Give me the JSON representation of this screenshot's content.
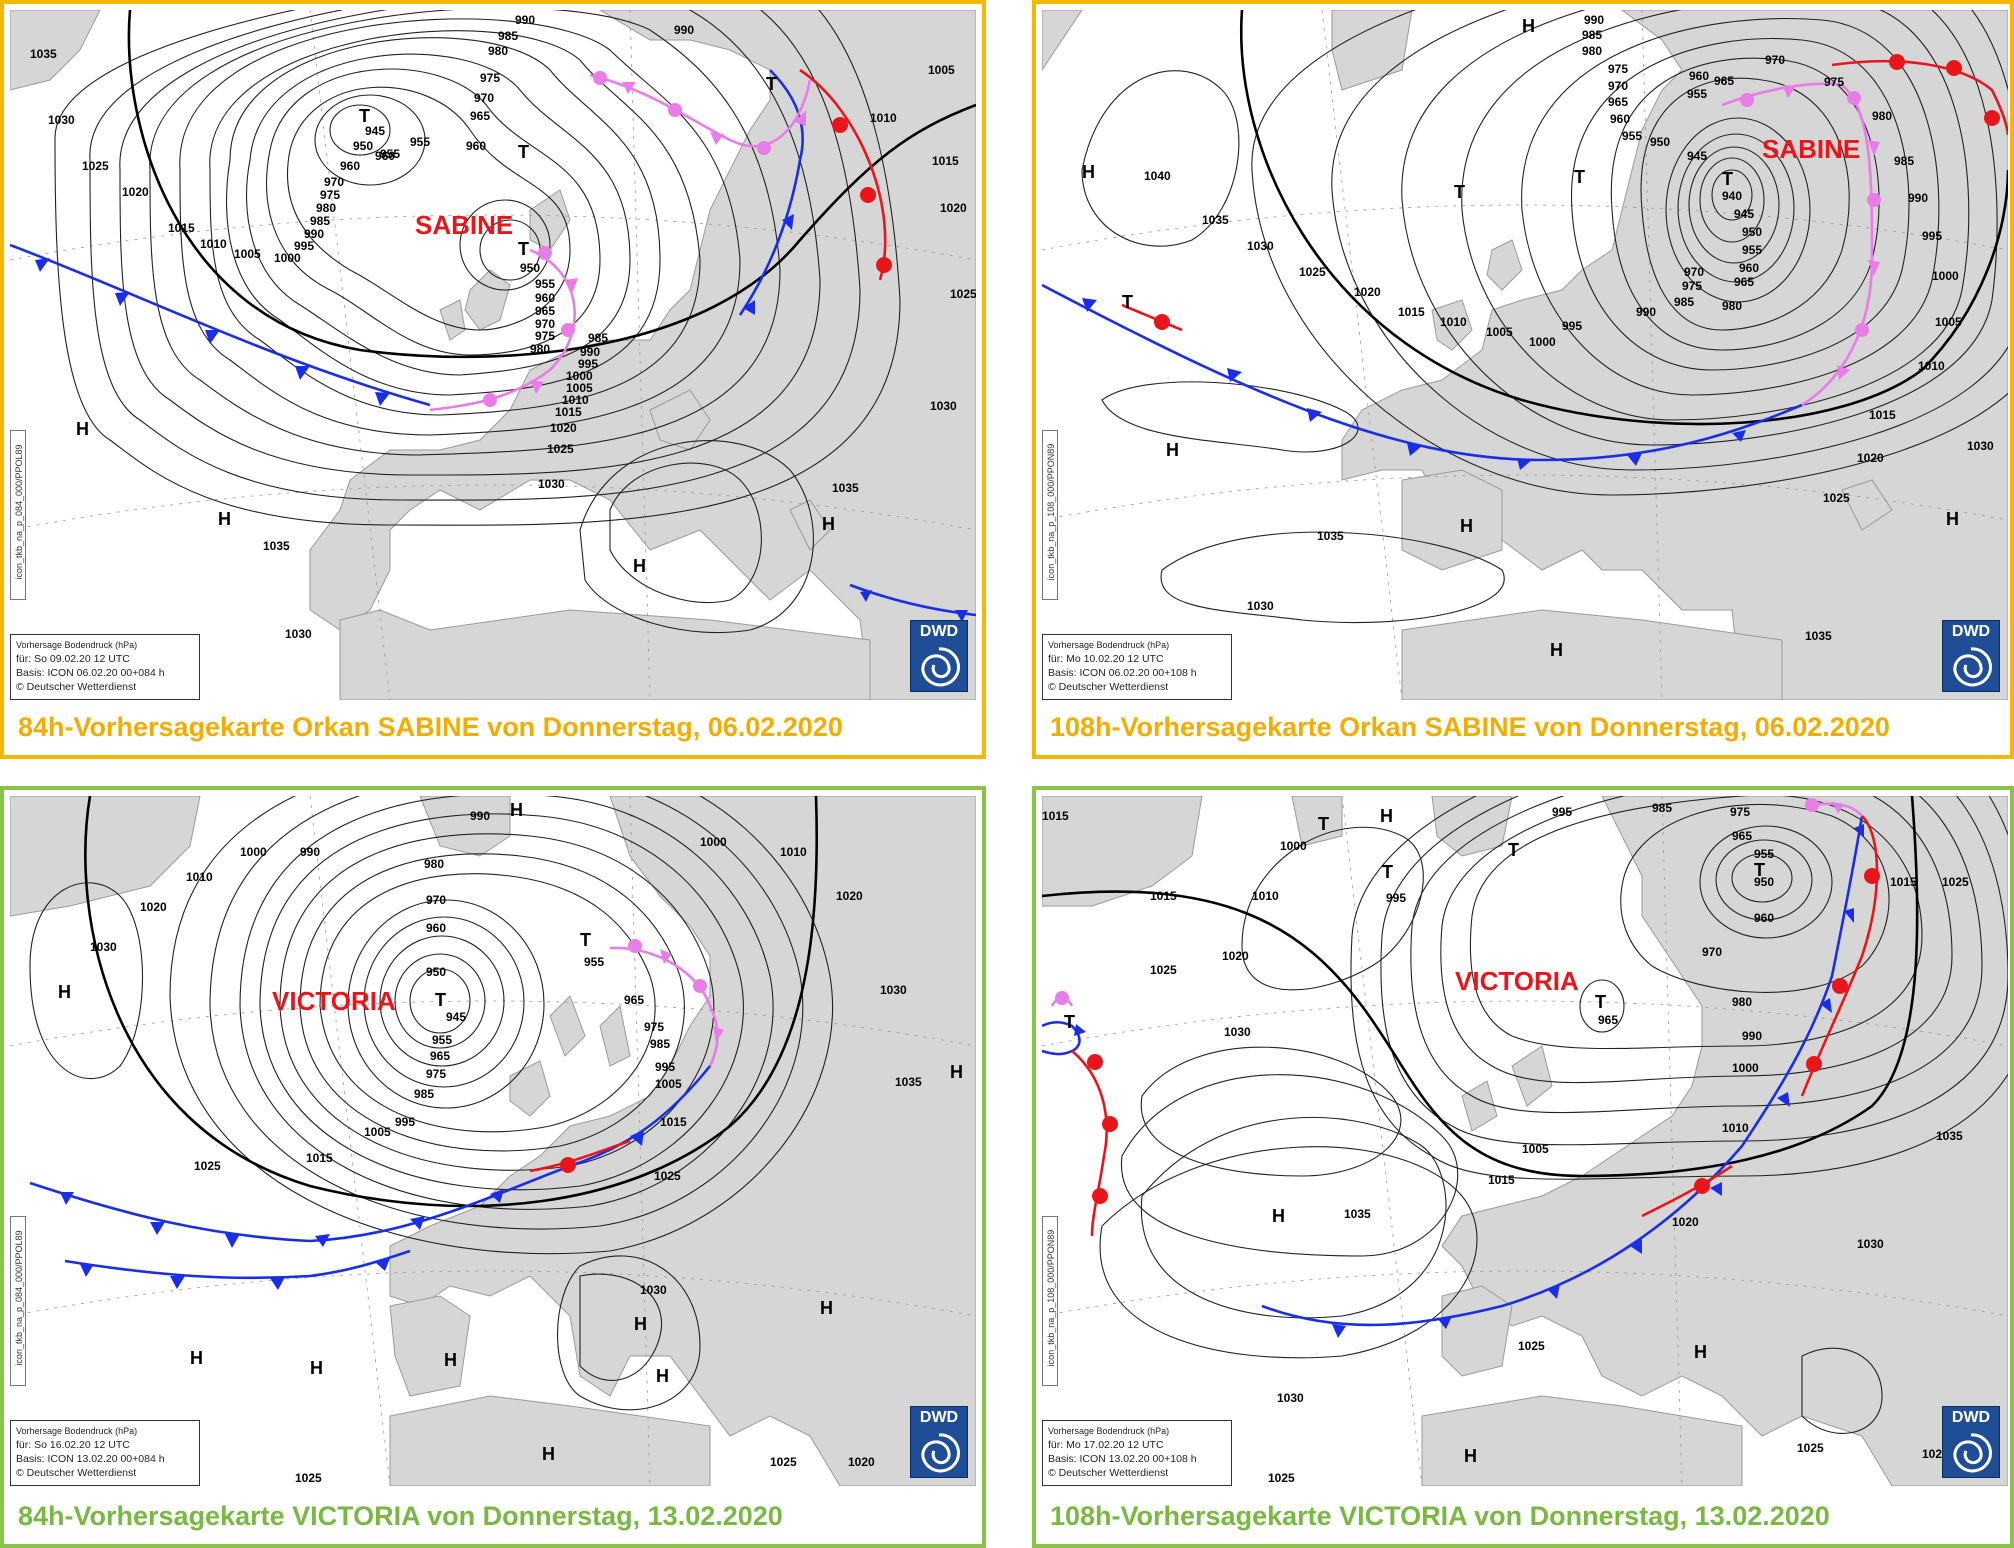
{
  "colors": {
    "top_border": "#f5b700",
    "top_caption": "#f2ad00",
    "bottom_border": "#8bc34a",
    "bottom_caption": "#79b843",
    "land": "#d6d6d6",
    "sea": "#ffffff",
    "cold_front": "#1a2ee6",
    "warm_front": "#e8161a",
    "occluded_front": "#e87de8",
    "storm_name": "#e8161a",
    "dwd_blue": "#1f4e96"
  },
  "panels": [
    {
      "caption": "84h-Vorhersagekarte Orkan SABINE von Donnerstag, 06.02.2020",
      "storm_name": "SABINE",
      "legend": {
        "title": "Vorhersage Bodendruck (hPa)",
        "valid": "für:  So 09.02.20  12 UTC",
        "basis": "Basis: ICON  06.02.20 00+084 h",
        "copyright": "© Deutscher Wetterdienst"
      },
      "side_label": "icon_tkb_na_p_084_000/PPOL89",
      "logo": "DWD",
      "pressure_labels": [
        "945",
        "950",
        "955",
        "960",
        "965",
        "970",
        "975",
        "980",
        "985",
        "990",
        "995",
        "1000",
        "1005",
        "1010",
        "1015",
        "1020",
        "1025",
        "1030",
        "1035"
      ],
      "centers": [
        "T",
        "T",
        "T",
        "T",
        "H",
        "H",
        "H",
        "H"
      ]
    },
    {
      "caption": "108h-Vorhersagekarte Orkan SABINE von Donnerstag, 06.02.2020",
      "storm_name": "SABINE",
      "legend": {
        "title": "Vorhersage Bodendruck (hPa)",
        "valid": "für:  Mo 10.02.20  12 UTC",
        "basis": "Basis: ICON  06.02.20 00+108 h",
        "copyright": "© Deutscher Wetterdienst"
      },
      "side_label": "icon_tkb_na_p_108_000/PPON89",
      "logo": "DWD",
      "pressure_labels": [
        "940",
        "945",
        "950",
        "955",
        "960",
        "965",
        "970",
        "975",
        "980",
        "985",
        "990",
        "995",
        "1000",
        "1005",
        "1010",
        "1015",
        "1020",
        "1025",
        "1030",
        "1035",
        "1040"
      ],
      "centers": [
        "T",
        "T",
        "T",
        "T",
        "H",
        "H",
        "H",
        "H",
        "H",
        "H"
      ]
    },
    {
      "caption": "84h-Vorhersagekarte VICTORIA von Donnerstag, 13.02.2020",
      "storm_name": "VICTORIA",
      "legend": {
        "title": "Vorhersage Bodendruck (hPa)",
        "valid": "für:  So 16.02.20  12 UTC",
        "basis": "Basis: ICON  13.02.20 00+084 h",
        "copyright": "© Deutscher Wetterdienst"
      },
      "side_label": "icon_tkb_na_p_084_000/PPOL89",
      "logo": "DWD",
      "pressure_labels": [
        "945",
        "950",
        "955",
        "960",
        "965",
        "970",
        "975",
        "980",
        "985",
        "990",
        "995",
        "1000",
        "1005",
        "1010",
        "1015",
        "1020",
        "1025",
        "1030",
        "1035"
      ],
      "centers": [
        "T",
        "T",
        "H",
        "H",
        "H",
        "H",
        "H",
        "H",
        "H",
        "H",
        "H"
      ]
    },
    {
      "caption": "108h-Vorhersagekarte VICTORIA von Donnerstag, 13.02.2020",
      "storm_name": "VICTORIA",
      "legend": {
        "title": "Vorhersage Bodendruck (hPa)",
        "valid": "für:  Mo 17.02.20  12 UTC",
        "basis": "Basis: ICON  13.02.20 00+108 h",
        "copyright": "© Deutscher Wetterdienst"
      },
      "side_label": "icon_tkb_na_p_108_000/PPON89",
      "logo": "DWD",
      "pressure_labels": [
        "950",
        "955",
        "960",
        "965",
        "970",
        "975",
        "980",
        "985",
        "990",
        "995",
        "1000",
        "1005",
        "1010",
        "1015",
        "1020",
        "1025",
        "1030",
        "1035"
      ],
      "centers": [
        "T",
        "T",
        "T",
        "T",
        "T",
        "H",
        "H",
        "H",
        "H"
      ]
    }
  ]
}
